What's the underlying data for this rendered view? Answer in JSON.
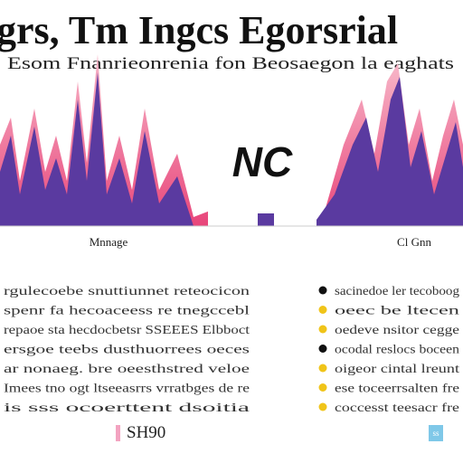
{
  "header": {
    "title": "grs, Tm Ingcs Egorsrial",
    "subtitle": "Esom Fnanrieonrenia fon Beosaegon la eaghats"
  },
  "graphic": {
    "center_label": "NC",
    "left_label": "Mnnage",
    "right_label": "Cl Gnn"
  },
  "paragraph": {
    "lines": [
      "rgulecoebe snuttiunnet reteocicon",
      "spenr fa hecoaceess re tnegccebl",
      "repaoe sta hecdocbetsr SSEEES Elbboct",
      "ersgoe teebs dusthuorrees oeces",
      "ar nonaeg. bre oeesthstred veloe",
      "Imees tno ogt ltseeasrrs vrratbges de re",
      "is sss ocoerttent dsoitia"
    ]
  },
  "bullets": {
    "items": [
      "sacinedoe ler tecoboog",
      "oeec be ltecen",
      "oedeve nsitor cegge",
      "ocodal reslocs boceen",
      "oigeor cintal lreunt",
      "ese toceerrsalten fre",
      "coccesst teesacr fre"
    ]
  },
  "footer": {
    "left_label": "SH90",
    "right_badge": "ss"
  }
}
